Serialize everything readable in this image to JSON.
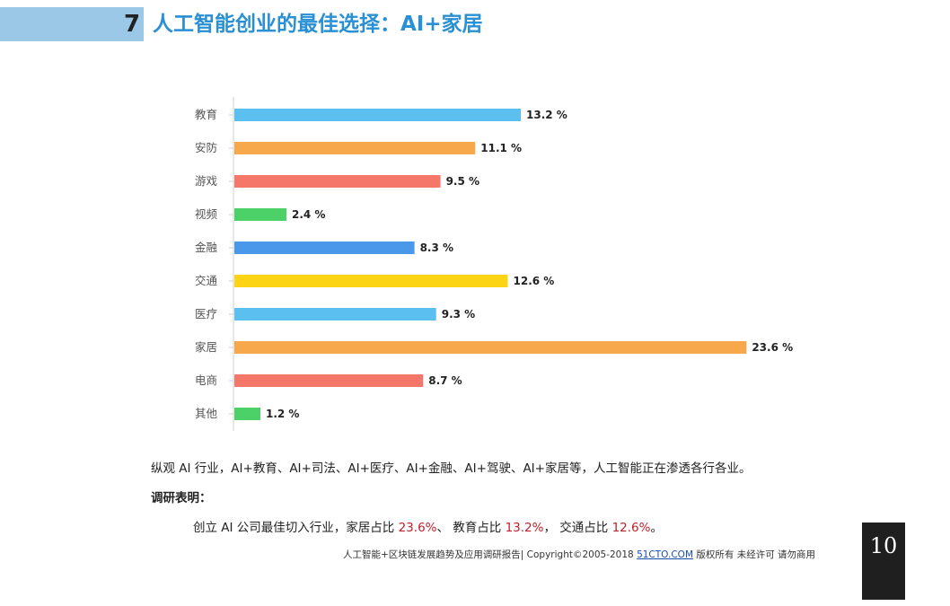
{
  "header": {
    "number": "7",
    "title": "人工智能创业的最佳选择：AI+家居"
  },
  "chart_data": {
    "type": "bar",
    "orientation": "horizontal",
    "categories": [
      "教育",
      "安防",
      "游戏",
      "视频",
      "金融",
      "交通",
      "医疗",
      "家居",
      "电商",
      "其他"
    ],
    "values": [
      13.2,
      11.1,
      9.5,
      2.4,
      8.3,
      12.6,
      9.3,
      23.6,
      8.7,
      1.2
    ],
    "value_labels": [
      "13.2 %",
      "11.1 %",
      "9.5 %",
      "2.4 %",
      "8.3 %",
      "12.6 %",
      "9.3 %",
      "23.6 %",
      "8.7 %",
      "1.2 %"
    ],
    "colors": [
      "#5bc0f0",
      "#f7a84a",
      "#f5776a",
      "#4cd068",
      "#4a98ea",
      "#fcd414",
      "#5bc0f0",
      "#f7a84a",
      "#f5776a",
      "#4cd068"
    ],
    "xlim": [
      0,
      24
    ],
    "grid": false,
    "legend": "none"
  },
  "text": {
    "summary": "纵观 AI 行业，AI+教育、AI+司法、AI+医疗、AI+金融、AI+驾驶、AI+家居等，人工智能正在渗透各行各业。",
    "findings_label": "调研表明：",
    "finding": {
      "prefix": "创立 AI 公司最佳切入行业，家居占比 ",
      "home_pct": "23.6%",
      "mid1": "、 教育占比 ",
      "edu_pct": "13.2%",
      "mid2": "， 交通占比 ",
      "traffic_pct": "12.6%",
      "suffix": "。"
    }
  },
  "footer": {
    "text_before": "人工智能+区块链发展趋势及应用调研报告| Copyright©2005-2018 ",
    "link": "51CTO.COM",
    "text_after": " 版权所有 未经许可 请勿商用"
  },
  "page_number": "10"
}
